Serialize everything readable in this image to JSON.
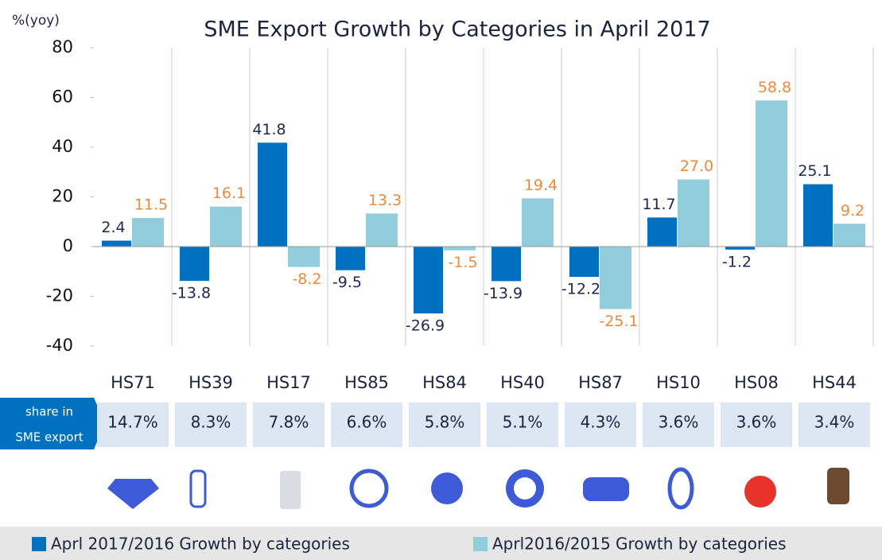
{
  "chart_data": {
    "type": "bar",
    "title": "SME Export Growth by Categories in April 2017",
    "y_label": "%(yoy)",
    "categories": [
      "HS71",
      "HS39",
      "HS17",
      "HS85",
      "HS84",
      "HS40",
      "HS87",
      "HS10",
      "HS08",
      "HS44"
    ],
    "series": [
      {
        "name": "Aprl 2017/2016 Growth by categories",
        "color": "#0070c0",
        "label_color": "#1a2a55",
        "values": [
          2.4,
          -13.8,
          41.8,
          -9.5,
          -26.9,
          -13.9,
          -12.2,
          11.7,
          -1.2,
          25.1
        ]
      },
      {
        "name": "Aprl2016/2015 Growth by categories",
        "color": "#92cddc",
        "label_color": "#ef8a3c",
        "values": [
          11.5,
          16.1,
          -8.2,
          13.3,
          -1.5,
          19.4,
          -25.1,
          27.0,
          58.8,
          9.2
        ],
        "value_labels": [
          "11.5",
          "16.1",
          "-8.2",
          "13.3",
          "-1.5",
          "19.4",
          "-25.1",
          "27.0",
          "58.8",
          "9.2"
        ]
      }
    ],
    "ylim": [
      -40,
      80
    ],
    "yticks": [
      80,
      60,
      40,
      20,
      0,
      -20,
      -40
    ],
    "share_label": [
      "share in",
      "SME export"
    ],
    "shares": [
      "14.7%",
      "8.3%",
      "7.8%",
      "6.6%",
      "5.8%",
      "5.1%",
      "4.3%",
      "3.6%",
      "3.6%",
      "3.4%"
    ]
  }
}
